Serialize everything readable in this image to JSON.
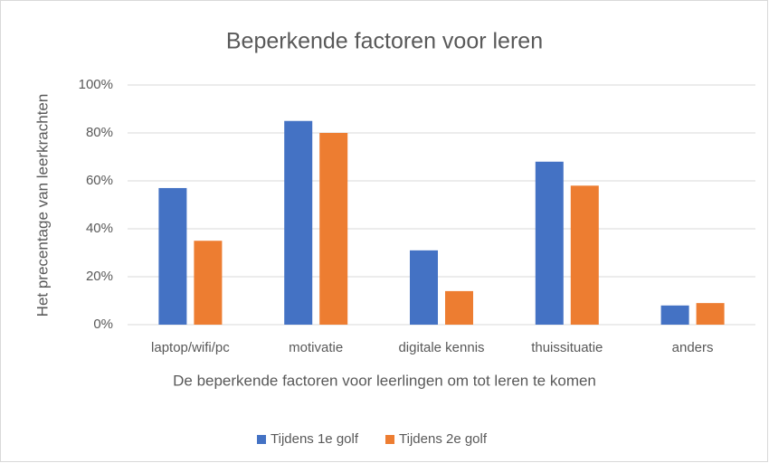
{
  "chart_data": {
    "type": "bar",
    "title": "Beperkende factoren voor leren",
    "x_label": "De beperkende factoren voor leerlingen om tot leren te komen",
    "y_label": "Het precentage van leerkrachten",
    "categories": [
      "laptop/wifi/pc",
      "motivatie",
      "digitale kennis",
      "thuissituatie",
      "anders"
    ],
    "series": [
      {
        "name": "Tijdens 1e golf",
        "color": "#4472c4",
        "values": [
          57,
          85,
          31,
          68,
          8
        ]
      },
      {
        "name": "Tijdens 2e golf",
        "color": "#ed7d31",
        "values": [
          35,
          80,
          14,
          58,
          9
        ]
      }
    ],
    "ylim": [
      0,
      100
    ],
    "yticks": [
      {
        "value": 0,
        "label": "0%"
      },
      {
        "value": 20,
        "label": "20%"
      },
      {
        "value": 40,
        "label": "40%"
      },
      {
        "value": 60,
        "label": "60%"
      },
      {
        "value": 80,
        "label": "80%"
      },
      {
        "value": 100,
        "label": "100%"
      }
    ],
    "grid": true,
    "legend": "bottom"
  }
}
